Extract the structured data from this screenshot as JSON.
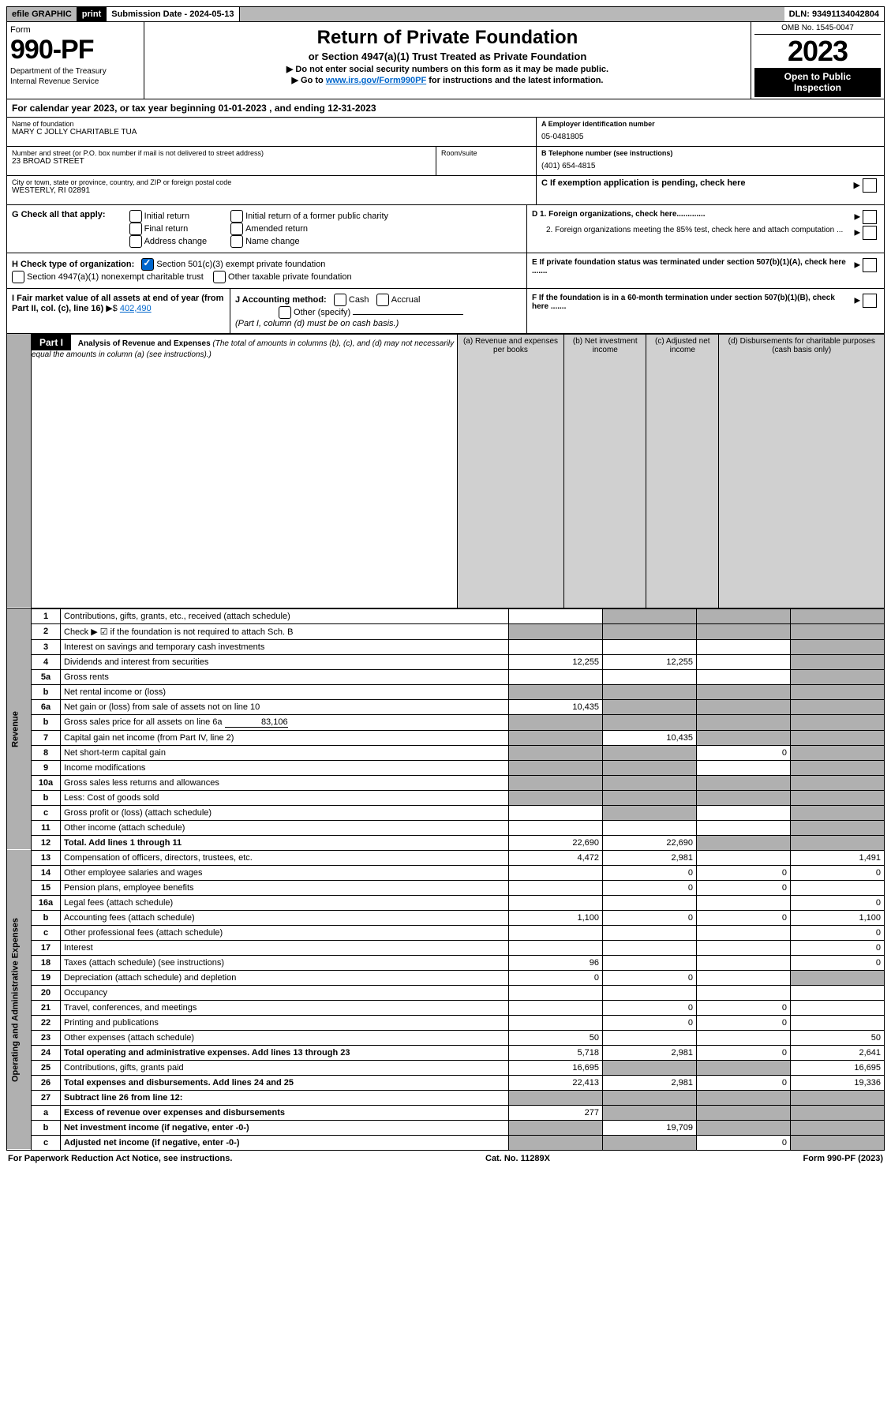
{
  "top": {
    "efile": "efile GRAPHIC",
    "print": "print",
    "submission_label": "Submission Date - 2024-05-13",
    "dln": "DLN: 93491134042804"
  },
  "header": {
    "form_word": "Form",
    "form_number": "990-PF",
    "dept1": "Department of the Treasury",
    "dept2": "Internal Revenue Service",
    "title": "Return of Private Foundation",
    "subtitle": "or Section 4947(a)(1) Trust Treated as Private Foundation",
    "notice1": "▶ Do not enter social security numbers on this form as it may be made public.",
    "notice2_pre": "▶ Go to ",
    "notice2_link": "www.irs.gov/Form990PF",
    "notice2_post": " for instructions and the latest information.",
    "omb": "OMB No. 1545-0047",
    "year": "2023",
    "open1": "Open to Public",
    "open2": "Inspection"
  },
  "cal_year": "For calendar year 2023, or tax year beginning 01-01-2023          , and ending 12-31-2023",
  "info": {
    "name_label": "Name of foundation",
    "name": "MARY C JOLLY CHARITABLE TUA",
    "addr_label": "Number and street (or P.O. box number if mail is not delivered to street address)",
    "addr": "23 BROAD STREET",
    "room_label": "Room/suite",
    "city_label": "City or town, state or province, country, and ZIP or foreign postal code",
    "city": "WESTERLY, RI  02891",
    "ein_label": "A Employer identification number",
    "ein": "05-0481805",
    "phone_label": "B Telephone number (see instructions)",
    "phone": "(401) 654-4815",
    "c_label": "C If exemption application is pending, check here"
  },
  "sectionG": {
    "label": "G Check all that apply:",
    "initial": "Initial return",
    "final": "Final return",
    "address": "Address change",
    "initial_former": "Initial return of a former public charity",
    "amended": "Amended return",
    "name_change": "Name change"
  },
  "sectionH": {
    "label": "H Check type of organization:",
    "c3": "Section 501(c)(3) exempt private foundation",
    "trust": "Section 4947(a)(1) nonexempt charitable trust",
    "other": "Other taxable private foundation"
  },
  "sectionI": {
    "label": "I Fair market value of all assets at end of year (from Part II, col. (c), line 16)",
    "value": "402,490"
  },
  "sectionJ": {
    "label": "J Accounting method:",
    "cash": "Cash",
    "accrual": "Accrual",
    "other": "Other (specify)",
    "note": "(Part I, column (d) must be on cash basis.)"
  },
  "sectionD": {
    "d1": "D 1. Foreign organizations, check here.............",
    "d2": "2. Foreign organizations meeting the 85% test, check here and attach computation ..."
  },
  "sectionE": "E  If private foundation status was terminated under section 507(b)(1)(A), check here .......",
  "sectionF": "F  If the foundation is in a 60-month termination under section 507(b)(1)(B), check here .......",
  "part1": {
    "label": "Part I",
    "title": "Analysis of Revenue and Expenses",
    "title_note": " (The total of amounts in columns (b), (c), and (d) may not necessarily equal the amounts in column (a) (see instructions).)",
    "col_a": "(a) Revenue and expenses per books",
    "col_b": "(b) Net investment income",
    "col_c": "(c) Adjusted net income",
    "col_d": "(d) Disbursements for charitable purposes (cash basis only)"
  },
  "sidelabels": {
    "revenue": "Revenue",
    "expenses": "Operating and Administrative Expenses"
  },
  "rows": {
    "1": {
      "n": "1",
      "d": "Contributions, gifts, grants, etc., received (attach schedule)"
    },
    "2": {
      "n": "2",
      "d": "Check ▶ ☑ if the foundation is not required to attach Sch. B"
    },
    "3": {
      "n": "3",
      "d": "Interest on savings and temporary cash investments"
    },
    "4": {
      "n": "4",
      "d": "Dividends and interest from securities",
      "a": "12,255",
      "b": "12,255"
    },
    "5a": {
      "n": "5a",
      "d": "Gross rents"
    },
    "5b": {
      "n": "b",
      "d": "Net rental income or (loss)"
    },
    "6a": {
      "n": "6a",
      "d": "Net gain or (loss) from sale of assets not on line 10",
      "a": "10,435"
    },
    "6b": {
      "n": "b",
      "d": "Gross sales price for all assets on line 6a",
      "inline": "83,106"
    },
    "7": {
      "n": "7",
      "d": "Capital gain net income (from Part IV, line 2)",
      "b": "10,435"
    },
    "8": {
      "n": "8",
      "d": "Net short-term capital gain",
      "c": "0"
    },
    "9": {
      "n": "9",
      "d": "Income modifications"
    },
    "10a": {
      "n": "10a",
      "d": "Gross sales less returns and allowances"
    },
    "10b": {
      "n": "b",
      "d": "Less: Cost of goods sold"
    },
    "10c": {
      "n": "c",
      "d": "Gross profit or (loss) (attach schedule)"
    },
    "11": {
      "n": "11",
      "d": "Other income (attach schedule)"
    },
    "12": {
      "n": "12",
      "d": "Total. Add lines 1 through 11",
      "a": "22,690",
      "b": "22,690",
      "bold": true
    },
    "13": {
      "n": "13",
      "d": "Compensation of officers, directors, trustees, etc.",
      "a": "4,472",
      "b": "2,981",
      "dd": "1,491"
    },
    "14": {
      "n": "14",
      "d": "Other employee salaries and wages",
      "b": "0",
      "c": "0",
      "dd": "0"
    },
    "15": {
      "n": "15",
      "d": "Pension plans, employee benefits",
      "b": "0",
      "c": "0"
    },
    "16a": {
      "n": "16a",
      "d": "Legal fees (attach schedule)",
      "dd": "0"
    },
    "16b": {
      "n": "b",
      "d": "Accounting fees (attach schedule)",
      "a": "1,100",
      "b": "0",
      "c": "0",
      "dd": "1,100"
    },
    "16c": {
      "n": "c",
      "d": "Other professional fees (attach schedule)",
      "dd": "0"
    },
    "17": {
      "n": "17",
      "d": "Interest",
      "dd": "0"
    },
    "18": {
      "n": "18",
      "d": "Taxes (attach schedule) (see instructions)",
      "a": "96",
      "dd": "0"
    },
    "19": {
      "n": "19",
      "d": "Depreciation (attach schedule) and depletion",
      "a": "0",
      "b": "0"
    },
    "20": {
      "n": "20",
      "d": "Occupancy"
    },
    "21": {
      "n": "21",
      "d": "Travel, conferences, and meetings",
      "b": "0",
      "c": "0"
    },
    "22": {
      "n": "22",
      "d": "Printing and publications",
      "b": "0",
      "c": "0"
    },
    "23": {
      "n": "23",
      "d": "Other expenses (attach schedule)",
      "a": "50",
      "dd": "50"
    },
    "24": {
      "n": "24",
      "d": "Total operating and administrative expenses. Add lines 13 through 23",
      "a": "5,718",
      "b": "2,981",
      "c": "0",
      "dd": "2,641",
      "bold": true
    },
    "25": {
      "n": "25",
      "d": "Contributions, gifts, grants paid",
      "a": "16,695",
      "dd": "16,695"
    },
    "26": {
      "n": "26",
      "d": "Total expenses and disbursements. Add lines 24 and 25",
      "a": "22,413",
      "b": "2,981",
      "c": "0",
      "dd": "19,336",
      "bold": true
    },
    "27": {
      "n": "27",
      "d": "Subtract line 26 from line 12:",
      "bold": true
    },
    "27a": {
      "n": "a",
      "d": "Excess of revenue over expenses and disbursements",
      "a": "277",
      "bold": true
    },
    "27b": {
      "n": "b",
      "d": "Net investment income (if negative, enter -0-)",
      "b": "19,709",
      "bold": true
    },
    "27c": {
      "n": "c",
      "d": "Adjusted net income (if negative, enter -0-)",
      "c": "0",
      "bold": true
    }
  },
  "footer": {
    "left": "For Paperwork Reduction Act Notice, see instructions.",
    "center": "Cat. No. 11289X",
    "right": "Form 990-PF (2023)"
  }
}
